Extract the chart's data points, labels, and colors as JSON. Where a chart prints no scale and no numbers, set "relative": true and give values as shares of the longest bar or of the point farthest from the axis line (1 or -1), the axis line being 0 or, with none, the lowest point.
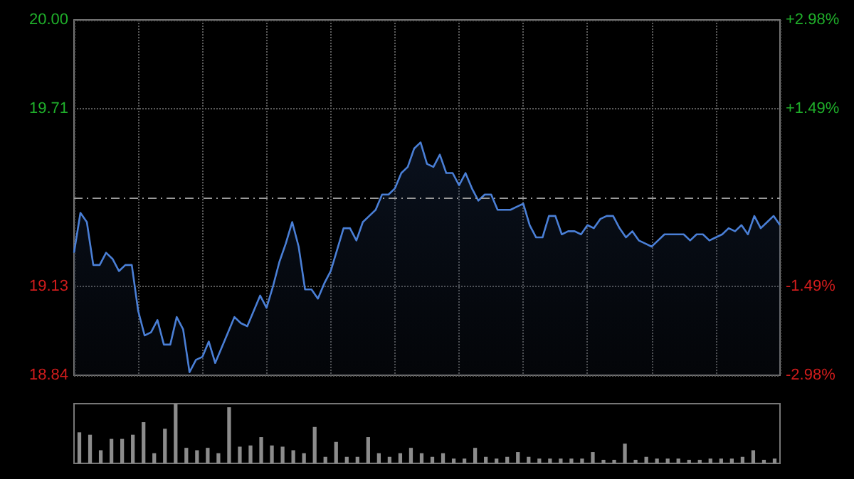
{
  "chart_data": [
    {
      "type": "area",
      "categories": [
        null,
        null,
        null,
        null,
        null,
        null,
        null,
        null,
        null,
        null,
        null,
        null,
        null,
        null,
        null,
        null,
        null,
        null,
        null,
        null,
        null,
        null,
        null,
        null,
        null,
        null,
        null,
        null,
        null,
        null,
        null,
        null,
        null,
        null,
        null,
        null,
        null,
        null,
        null,
        null,
        null,
        null,
        null,
        null,
        null,
        null,
        null,
        null,
        null,
        null,
        null,
        null,
        null,
        null,
        null,
        null,
        null,
        null,
        null,
        null,
        null,
        null,
        null,
        null,
        null,
        null,
        null,
        null,
        null,
        null,
        null,
        null,
        null,
        null,
        null,
        null,
        null,
        null,
        null,
        null,
        null,
        null,
        null,
        null,
        null,
        null,
        null,
        null,
        null,
        null,
        null,
        null,
        null,
        null,
        null,
        null,
        null,
        null,
        null,
        null,
        null,
        null,
        null,
        null,
        null,
        null,
        null,
        null,
        null,
        null,
        null
      ],
      "series": [
        {
          "color": "#4a7fd6",
          "values": [
            19.24,
            19.37,
            19.34,
            19.2,
            19.2,
            19.24,
            19.22,
            19.18,
            19.2,
            19.2,
            19.05,
            18.97,
            18.98,
            19.02,
            18.94,
            18.94,
            19.03,
            18.99,
            18.85,
            18.89,
            18.9,
            18.95,
            18.88,
            18.93,
            18.98,
            19.03,
            19.01,
            19.0,
            19.05,
            19.1,
            19.06,
            19.13,
            19.21,
            19.27,
            19.34,
            19.26,
            19.12,
            19.12,
            19.09,
            19.14,
            19.18,
            19.25,
            19.32,
            19.32,
            19.28,
            19.34,
            19.36,
            19.38,
            19.43,
            19.43,
            19.45,
            19.5,
            19.52,
            19.58,
            19.6,
            19.53,
            19.52,
            19.56,
            19.5,
            19.5,
            19.46,
            19.5,
            19.45,
            19.41,
            19.43,
            19.43,
            19.38,
            19.38,
            19.38,
            19.39,
            19.4,
            19.33,
            19.29,
            19.29,
            19.36,
            19.36,
            19.3,
            19.31,
            19.31,
            19.3,
            19.33,
            19.32,
            19.35,
            19.36,
            19.36,
            19.32,
            19.29,
            19.31,
            19.28,
            19.27,
            19.26,
            19.28,
            19.3,
            19.3,
            19.3,
            19.3,
            19.28,
            19.3,
            19.3,
            19.28,
            19.29,
            19.3,
            19.32,
            19.31,
            19.33,
            19.3,
            19.36,
            19.32,
            19.34,
            19.36,
            19.33
          ]
        }
      ],
      "ylim": [
        18.84,
        20.0
      ],
      "yticks": [
        18.84,
        19.13,
        19.71,
        {
          "value": 20.0,
          "label": "20.00"
        }
      ],
      "y2lim": [
        -2.98,
        2.98
      ],
      "y2ticks": [
        {
          "value": -2.98,
          "label": "-2.98%"
        },
        {
          "value": -1.49,
          "label": "-1.49%"
        },
        {
          "value": 1.49,
          "label": "+1.49%"
        },
        {
          "value": 2.98,
          "label": "+2.98%"
        }
      ],
      "ref_lines": [
        {
          "axis": "y",
          "value": 19.42,
          "line_style": "dashed"
        }
      ],
      "grid": true
    },
    {
      "type": "bar",
      "relative": true,
      "categories": [
        null,
        null,
        null,
        null,
        null,
        null,
        null,
        null,
        null,
        null,
        null,
        null,
        null,
        null,
        null,
        null,
        null,
        null,
        null,
        null,
        null,
        null,
        null,
        null,
        null,
        null,
        null,
        null,
        null,
        null,
        null,
        null,
        null,
        null,
        null,
        null,
        null,
        null,
        null,
        null,
        null,
        null,
        null,
        null,
        null,
        null,
        null,
        null,
        null,
        null,
        null,
        null,
        null,
        null,
        null,
        null,
        null,
        null,
        null,
        null,
        null,
        null,
        null,
        null,
        null,
        null
      ],
      "color": "#8c8c8c",
      "values": [
        0.52,
        0.48,
        0.22,
        0.41,
        0.41,
        0.48,
        0.69,
        0.17,
        0.58,
        1.0,
        0.26,
        0.22,
        0.26,
        0.17,
        0.94,
        0.28,
        0.3,
        0.44,
        0.3,
        0.28,
        0.22,
        0.17,
        0.61,
        0.11,
        0.36,
        0.11,
        0.11,
        0.44,
        0.17,
        0.11,
        0.17,
        0.26,
        0.17,
        0.11,
        0.17,
        0.08,
        0.08,
        0.26,
        0.11,
        0.08,
        0.11,
        0.19,
        0.11,
        0.08,
        0.08,
        0.08,
        0.08,
        0.08,
        0.19,
        0.06,
        0.06,
        0.33,
        0.06,
        0.11,
        0.08,
        0.08,
        0.08,
        0.06,
        0.06,
        0.08,
        0.08,
        0.08,
        0.11,
        0.22,
        0.06,
        0.08
      ]
    }
  ]
}
